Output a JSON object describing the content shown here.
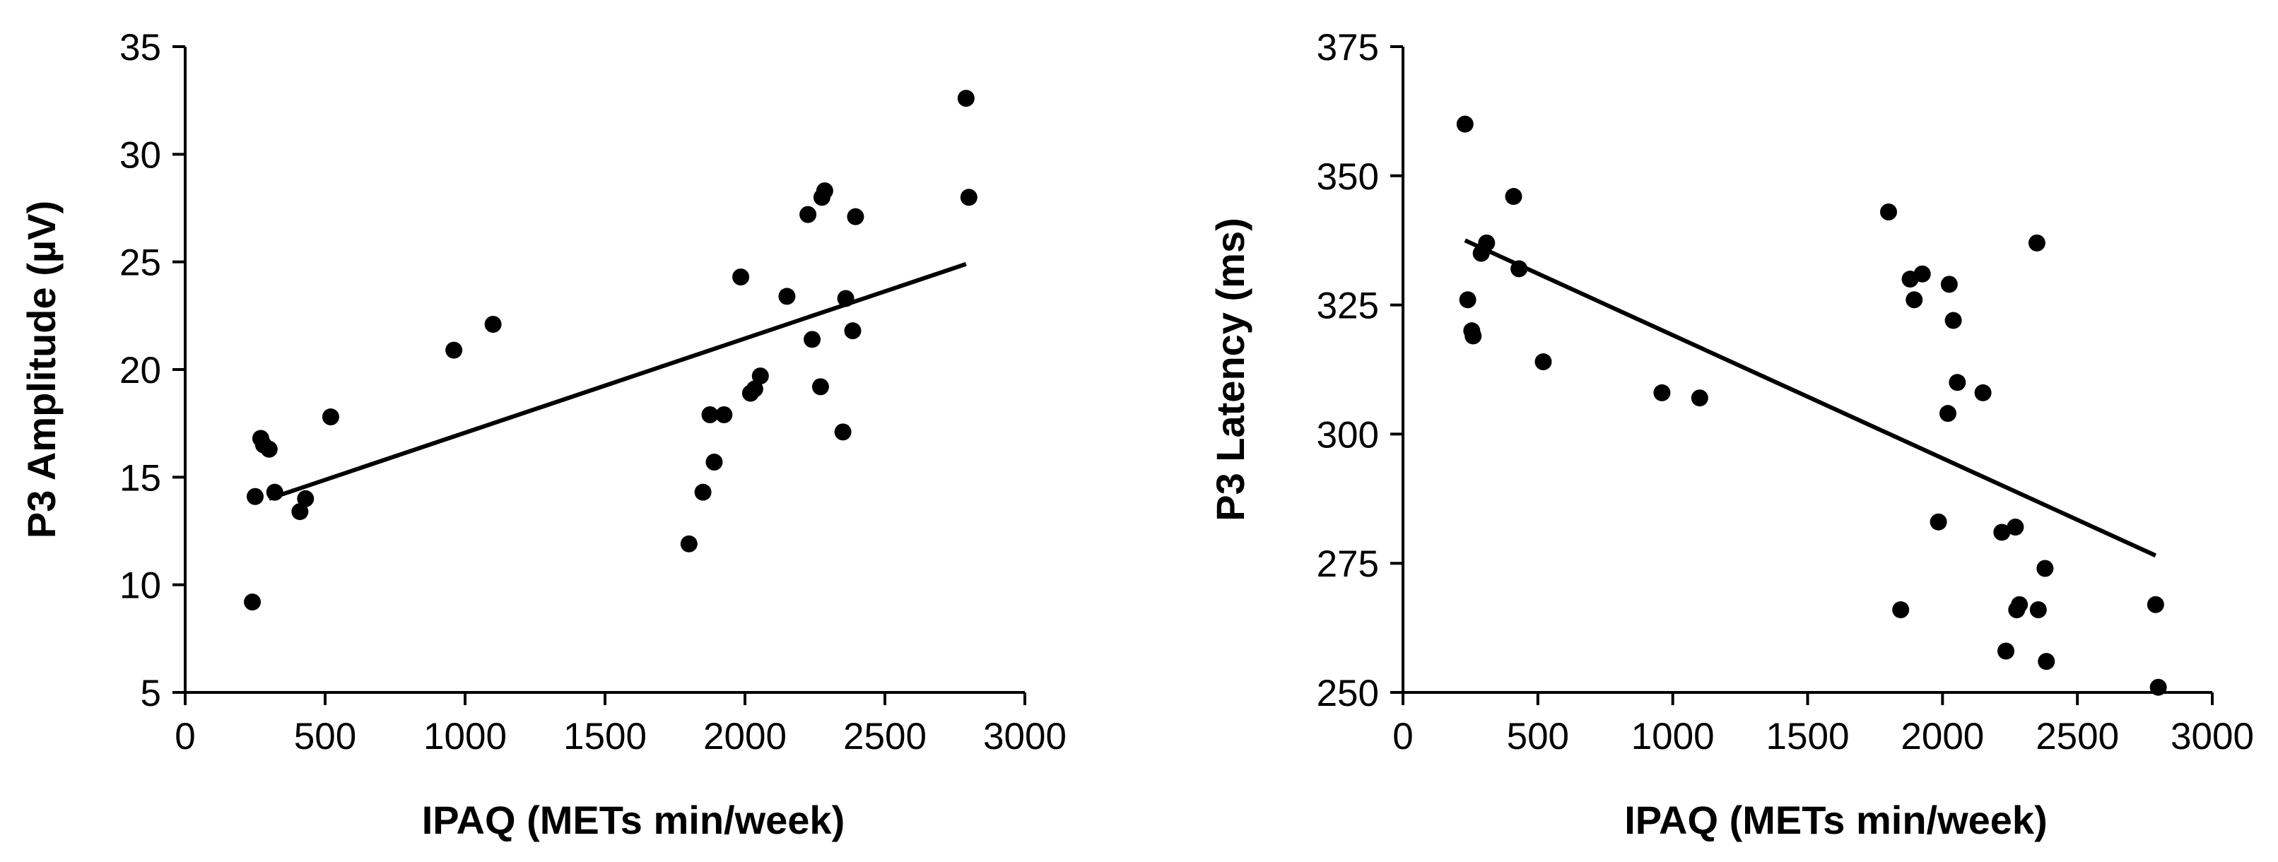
{
  "chart_data": [
    {
      "type": "scatter",
      "title": "",
      "xlabel": "IPAQ (METs min/week)",
      "ylabel": "P3 Amplitude (µV)",
      "xlim": [
        0,
        3000
      ],
      "ylim": [
        5,
        35
      ],
      "xticks": [
        0,
        500,
        1000,
        1500,
        2000,
        2500,
        3000
      ],
      "yticks": [
        5,
        10,
        15,
        20,
        25,
        30,
        35
      ],
      "grid": false,
      "legend": "none",
      "series": [
        {
          "name": "participants",
          "points": [
            [
              240,
              9.2
            ],
            [
              250,
              14.1
            ],
            [
              270,
              16.8
            ],
            [
              280,
              16.5
            ],
            [
              300,
              16.3
            ],
            [
              320,
              14.3
            ],
            [
              410,
              13.4
            ],
            [
              430,
              14.0
            ],
            [
              520,
              17.8
            ],
            [
              960,
              20.9
            ],
            [
              1100,
              22.1
            ],
            [
              1800,
              11.9
            ],
            [
              1850,
              14.3
            ],
            [
              1875,
              17.9
            ],
            [
              1890,
              15.7
            ],
            [
              1925,
              17.9
            ],
            [
              1985,
              24.3
            ],
            [
              2020,
              18.9
            ],
            [
              2035,
              19.1
            ],
            [
              2055,
              19.7
            ],
            [
              2150,
              23.4
            ],
            [
              2225,
              27.2
            ],
            [
              2240,
              21.4
            ],
            [
              2270,
              19.2
            ],
            [
              2275,
              28.0
            ],
            [
              2285,
              28.3
            ],
            [
              2350,
              17.1
            ],
            [
              2360,
              23.3
            ],
            [
              2385,
              21.8
            ],
            [
              2395,
              27.1
            ],
            [
              2790,
              32.6
            ],
            [
              2800,
              28.0
            ]
          ]
        },
        {
          "name": "regression line",
          "type": "line",
          "x": [
            300,
            2790
          ],
          "y": [
            14.0,
            24.9
          ]
        }
      ]
    },
    {
      "type": "scatter",
      "title": "",
      "xlabel": "IPAQ (METs min/week)",
      "ylabel": "P3 Latency  (ms)",
      "xlim": [
        0,
        3000
      ],
      "ylim": [
        250,
        375
      ],
      "xticks": [
        0,
        500,
        1000,
        1500,
        2000,
        2500,
        3000
      ],
      "yticks": [
        250,
        275,
        300,
        325,
        350,
        375
      ],
      "grid": false,
      "legend": "none",
      "series": [
        {
          "name": "participants",
          "points": [
            [
              230,
              360
            ],
            [
              240,
              326
            ],
            [
              255,
              320
            ],
            [
              260,
              319
            ],
            [
              290,
              335
            ],
            [
              310,
              337
            ],
            [
              410,
              346
            ],
            [
              430,
              332
            ],
            [
              520,
              314
            ],
            [
              960,
              308
            ],
            [
              1100,
              307
            ],
            [
              1800,
              343
            ],
            [
              1845,
              266
            ],
            [
              1880,
              330
            ],
            [
              1895,
              326
            ],
            [
              1925,
              331
            ],
            [
              1985,
              283
            ],
            [
              2020,
              304
            ],
            [
              2025,
              329
            ],
            [
              2040,
              322
            ],
            [
              2055,
              310
            ],
            [
              2150,
              308
            ],
            [
              2220,
              281
            ],
            [
              2235,
              258
            ],
            [
              2270,
              282
            ],
            [
              2275,
              266
            ],
            [
              2285,
              267
            ],
            [
              2350,
              337
            ],
            [
              2355,
              266
            ],
            [
              2380,
              274
            ],
            [
              2385,
              256
            ],
            [
              2790,
              267
            ],
            [
              2800,
              251
            ]
          ]
        },
        {
          "name": "regression line",
          "type": "line",
          "x": [
            230,
            2790
          ],
          "y": [
            337.5,
            276.5
          ]
        }
      ]
    }
  ]
}
